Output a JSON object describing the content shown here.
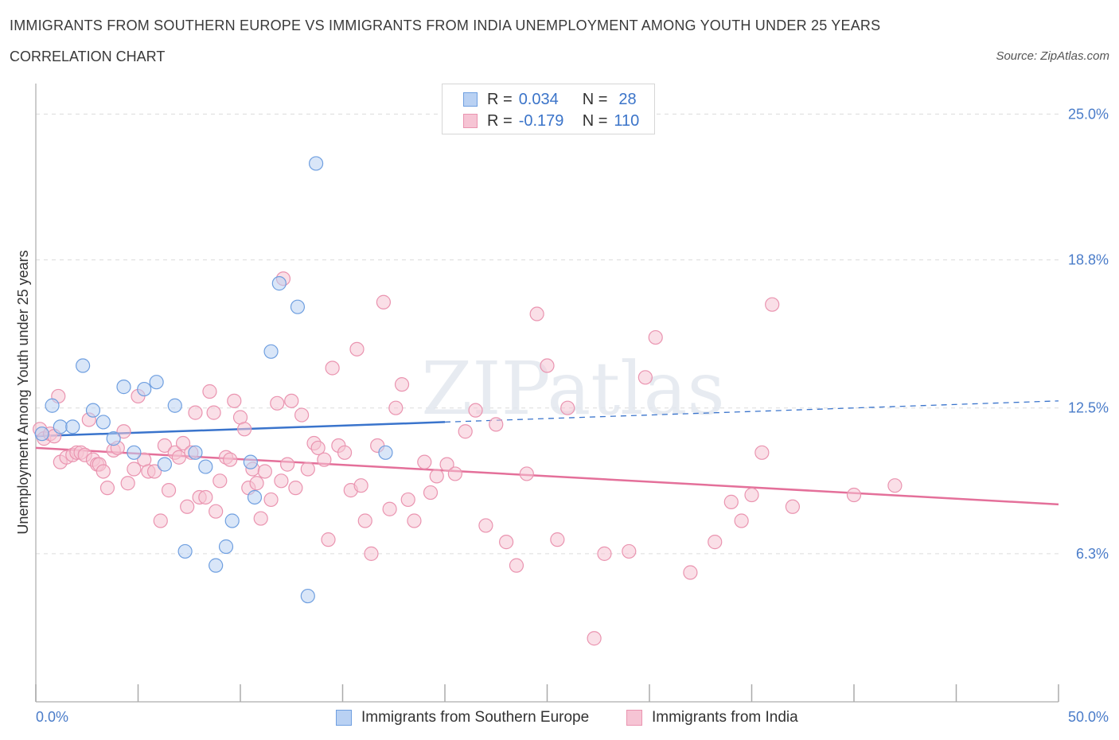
{
  "header": {
    "title": "IMMIGRANTS FROM SOUTHERN EUROPE VS IMMIGRANTS FROM INDIA UNEMPLOYMENT AMONG YOUTH UNDER 25 YEARS",
    "subtitle": "CORRELATION CHART",
    "source": "Source: ZipAtlas.com"
  },
  "watermark": "ZIPatlas",
  "legend": {
    "r_label": "R =",
    "n_label": "N =",
    "series1": {
      "r": "0.034",
      "n": "28"
    },
    "series2": {
      "r": "-0.179",
      "n": "110"
    }
  },
  "colors": {
    "blue_fill": "#b9d1f3",
    "blue_stroke": "#6f9fe0",
    "blue_line": "#3a74cc",
    "pink_fill": "#f6c4d4",
    "pink_stroke": "#ea94b0",
    "pink_line": "#e4709a",
    "tick_text": "#4a7cc9"
  },
  "chart_data": {
    "type": "scatter",
    "title": "IMMIGRANTS FROM SOUTHERN EUROPE VS IMMIGRANTS FROM INDIA UNEMPLOYMENT AMONG YOUTH UNDER 25 YEARS",
    "xlabel": "",
    "ylabel": "Unemployment Among Youth under 25 years",
    "xlim": [
      0,
      50
    ],
    "ylim": [
      0,
      26.3
    ],
    "x_tick_labels": [
      "0.0%",
      "50.0%"
    ],
    "y_ticks": [
      {
        "value": 25.0,
        "label": "25.0%"
      },
      {
        "value": 18.8,
        "label": "18.8%"
      },
      {
        "value": 12.5,
        "label": "12.5%"
      },
      {
        "value": 6.3,
        "label": "6.3%"
      }
    ],
    "grid": true,
    "series": [
      {
        "name": "Immigrants from Southern Europe",
        "r": 0.034,
        "n": 28,
        "trend": {
          "x_start": 0,
          "y_start": 11.3,
          "x_solid_end": 20,
          "y_solid_end": 11.9,
          "x_end": 50,
          "y_end": 12.8
        },
        "points": [
          [
            0.3,
            11.4
          ],
          [
            0.8,
            12.6
          ],
          [
            1.2,
            11.7
          ],
          [
            1.8,
            11.7
          ],
          [
            2.3,
            14.3
          ],
          [
            2.8,
            12.4
          ],
          [
            3.3,
            11.9
          ],
          [
            3.8,
            11.2
          ],
          [
            4.3,
            13.4
          ],
          [
            4.8,
            10.6
          ],
          [
            5.3,
            13.3
          ],
          [
            5.9,
            13.6
          ],
          [
            6.3,
            10.1
          ],
          [
            6.8,
            12.6
          ],
          [
            7.3,
            6.4
          ],
          [
            7.8,
            10.6
          ],
          [
            8.3,
            10.0
          ],
          [
            8.8,
            5.8
          ],
          [
            9.3,
            6.6
          ],
          [
            9.6,
            7.7
          ],
          [
            10.5,
            10.2
          ],
          [
            10.7,
            8.7
          ],
          [
            11.5,
            14.9
          ],
          [
            11.9,
            17.8
          ],
          [
            12.8,
            16.8
          ],
          [
            13.3,
            4.5
          ],
          [
            13.7,
            22.9
          ],
          [
            17.1,
            10.6
          ]
        ]
      },
      {
        "name": "Immigrants from India",
        "r": -0.179,
        "n": 110,
        "trend": {
          "x_start": 0,
          "y_start": 10.8,
          "x_end": 50,
          "y_end": 8.4
        },
        "points": [
          [
            0.2,
            11.6
          ],
          [
            0.4,
            11.2
          ],
          [
            0.7,
            11.4
          ],
          [
            0.9,
            11.3
          ],
          [
            1.1,
            13.0
          ],
          [
            1.2,
            10.2
          ],
          [
            1.5,
            10.4
          ],
          [
            1.8,
            10.5
          ],
          [
            2.0,
            10.6
          ],
          [
            2.2,
            10.6
          ],
          [
            2.4,
            10.5
          ],
          [
            2.6,
            12.0
          ],
          [
            2.8,
            10.3
          ],
          [
            3.0,
            10.1
          ],
          [
            3.1,
            10.1
          ],
          [
            3.3,
            9.8
          ],
          [
            3.5,
            9.1
          ],
          [
            3.8,
            10.7
          ],
          [
            4.0,
            10.8
          ],
          [
            4.3,
            11.5
          ],
          [
            4.5,
            9.3
          ],
          [
            4.8,
            9.9
          ],
          [
            5.0,
            13.0
          ],
          [
            5.3,
            10.3
          ],
          [
            5.5,
            9.8
          ],
          [
            5.8,
            9.8
          ],
          [
            6.1,
            7.7
          ],
          [
            6.3,
            10.9
          ],
          [
            6.5,
            9.0
          ],
          [
            6.8,
            10.6
          ],
          [
            7.0,
            10.4
          ],
          [
            7.2,
            11.0
          ],
          [
            7.4,
            8.3
          ],
          [
            7.6,
            10.6
          ],
          [
            7.8,
            12.3
          ],
          [
            8.0,
            8.7
          ],
          [
            8.3,
            8.7
          ],
          [
            8.5,
            13.2
          ],
          [
            8.8,
            8.1
          ],
          [
            9.0,
            9.4
          ],
          [
            9.3,
            10.4
          ],
          [
            9.5,
            10.3
          ],
          [
            9.7,
            12.8
          ],
          [
            10.0,
            12.1
          ],
          [
            10.2,
            11.6
          ],
          [
            10.4,
            9.1
          ],
          [
            10.6,
            9.9
          ],
          [
            10.8,
            9.3
          ],
          [
            11.0,
            7.8
          ],
          [
            11.2,
            9.8
          ],
          [
            11.5,
            8.6
          ],
          [
            11.8,
            12.7
          ],
          [
            12.0,
            9.4
          ],
          [
            12.3,
            10.1
          ],
          [
            12.5,
            12.8
          ],
          [
            12.7,
            9.1
          ],
          [
            13.0,
            12.2
          ],
          [
            13.3,
            9.9
          ],
          [
            13.6,
            11.0
          ],
          [
            13.8,
            10.8
          ],
          [
            14.1,
            10.3
          ],
          [
            14.3,
            6.9
          ],
          [
            14.5,
            14.2
          ],
          [
            14.8,
            10.9
          ],
          [
            15.1,
            10.6
          ],
          [
            15.4,
            9.0
          ],
          [
            15.7,
            15.0
          ],
          [
            15.9,
            9.2
          ],
          [
            16.1,
            7.7
          ],
          [
            16.4,
            6.3
          ],
          [
            16.7,
            10.9
          ],
          [
            17.0,
            17.0
          ],
          [
            17.3,
            8.2
          ],
          [
            17.6,
            12.5
          ],
          [
            17.9,
            13.5
          ],
          [
            18.2,
            8.6
          ],
          [
            18.5,
            7.7
          ],
          [
            19.0,
            10.2
          ],
          [
            19.3,
            8.9
          ],
          [
            19.6,
            9.6
          ],
          [
            20.1,
            10.1
          ],
          [
            20.5,
            9.7
          ],
          [
            21.0,
            11.5
          ],
          [
            21.5,
            12.4
          ],
          [
            22.0,
            7.5
          ],
          [
            22.5,
            11.8
          ],
          [
            23.0,
            6.8
          ],
          [
            23.5,
            5.8
          ],
          [
            24.0,
            9.7
          ],
          [
            24.5,
            16.5
          ],
          [
            25.0,
            14.3
          ],
          [
            25.5,
            6.9
          ],
          [
            26.0,
            12.5
          ],
          [
            27.3,
            2.7
          ],
          [
            27.8,
            6.3
          ],
          [
            29.0,
            6.4
          ],
          [
            29.8,
            13.8
          ],
          [
            30.3,
            15.5
          ],
          [
            32.0,
            5.5
          ],
          [
            33.2,
            6.8
          ],
          [
            34.0,
            8.5
          ],
          [
            34.5,
            7.7
          ],
          [
            35.0,
            8.8
          ],
          [
            35.5,
            10.6
          ],
          [
            36.0,
            16.9
          ],
          [
            37.0,
            8.3
          ],
          [
            40.0,
            8.8
          ],
          [
            42.0,
            9.2
          ],
          [
            8.7,
            12.3
          ],
          [
            12.1,
            18.0
          ]
        ]
      }
    ]
  }
}
